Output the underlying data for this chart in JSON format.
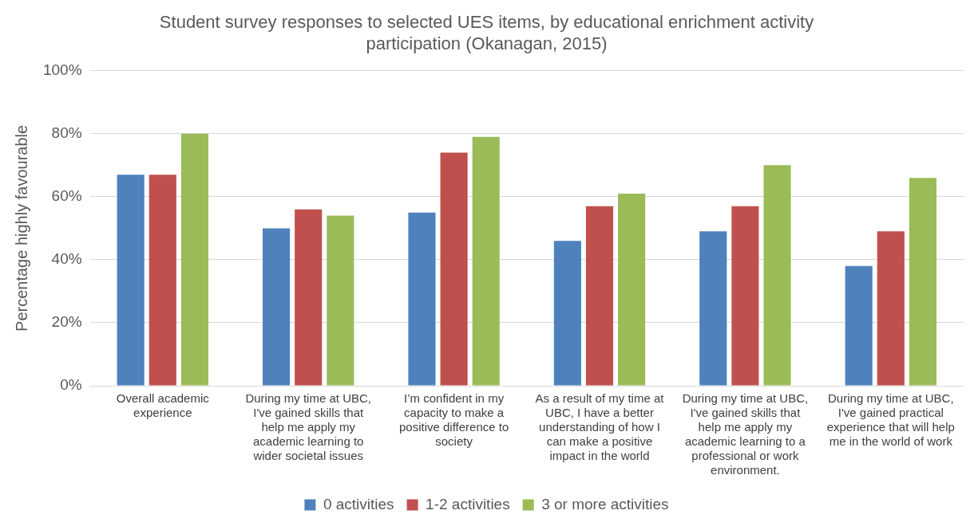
{
  "chart_data": {
    "type": "bar",
    "title": "Student survey responses to selected UES items, by educational enrichment activity participation (Okanagan, 2015)",
    "ylabel": "Percentage highly favourable",
    "categories": [
      "Overall academic experience",
      "During my time at UBC, I've gained skills that help me apply my academic learning to wider societal issues",
      "I’m confident in my capacity to make a positive difference to society",
      "As a result of my time at UBC, I have a better understanding of how I can make a positive impact in the world",
      "During my time at UBC, I've gained skills that help me apply my academic learning to a professional or work environment.",
      "During my time at UBC, I've gained practical experience that will help me in the world of work"
    ],
    "series": [
      {
        "name": "0 activities",
        "color": "#4f81bd",
        "values": [
          67,
          50,
          55,
          46,
          49,
          38
        ]
      },
      {
        "name": "1-2 activities",
        "color": "#c0504d",
        "values": [
          67,
          56,
          74,
          57,
          57,
          49
        ]
      },
      {
        "name": "3 or more activities",
        "color": "#9bbb59",
        "values": [
          80,
          54,
          79,
          61,
          70,
          66
        ]
      }
    ],
    "ylim": [
      0,
      100
    ],
    "yticks": [
      {
        "value": 0,
        "label": "0%"
      },
      {
        "value": 20,
        "label": "20%"
      },
      {
        "value": 40,
        "label": "40%"
      },
      {
        "value": 60,
        "label": "60%"
      },
      {
        "value": 80,
        "label": "80%"
      },
      {
        "value": 100,
        "label": "100%"
      }
    ],
    "grid": "y",
    "legend": "bottom"
  }
}
